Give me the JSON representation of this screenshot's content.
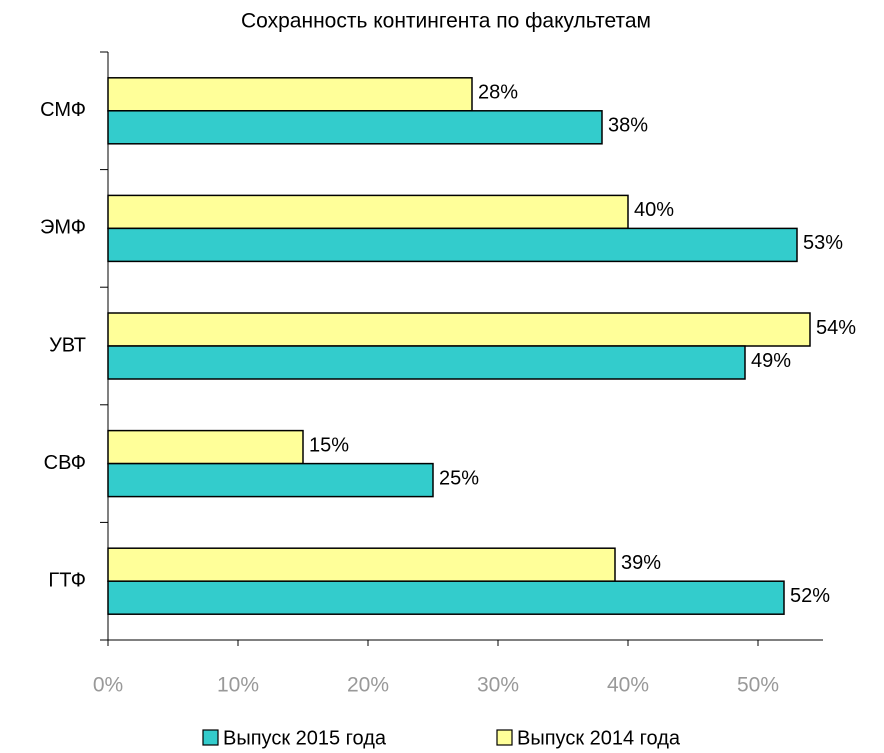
{
  "chart_data": {
    "type": "hbar",
    "title": "Сохранность контингента по факультетам",
    "categories": [
      "СМФ",
      "ЭМФ",
      "УВТ",
      "СВФ",
      "ГТФ"
    ],
    "series": [
      {
        "name": "Выпуск 2015 года",
        "color": "#33cccc",
        "values": [
          38,
          53,
          49,
          25,
          52
        ],
        "value_labels": [
          "38%",
          "53%",
          "49%",
          "25%",
          "52%"
        ]
      },
      {
        "name": "Выпуск 2014 года",
        "color": "#ffff99",
        "values": [
          28,
          40,
          54,
          15,
          39
        ],
        "value_labels": [
          "28%",
          "40%",
          "54%",
          "15%",
          "39%"
        ]
      }
    ],
    "xlim": [
      0,
      55
    ],
    "xticks": [
      {
        "value": 0,
        "label": "0%"
      },
      {
        "value": 10,
        "label": "10%"
      },
      {
        "value": 20,
        "label": "20%"
      },
      {
        "value": 30,
        "label": "30%"
      },
      {
        "value": 40,
        "label": "40%"
      },
      {
        "value": 50,
        "label": "50%"
      }
    ],
    "grid": false,
    "legend": "bottom"
  }
}
